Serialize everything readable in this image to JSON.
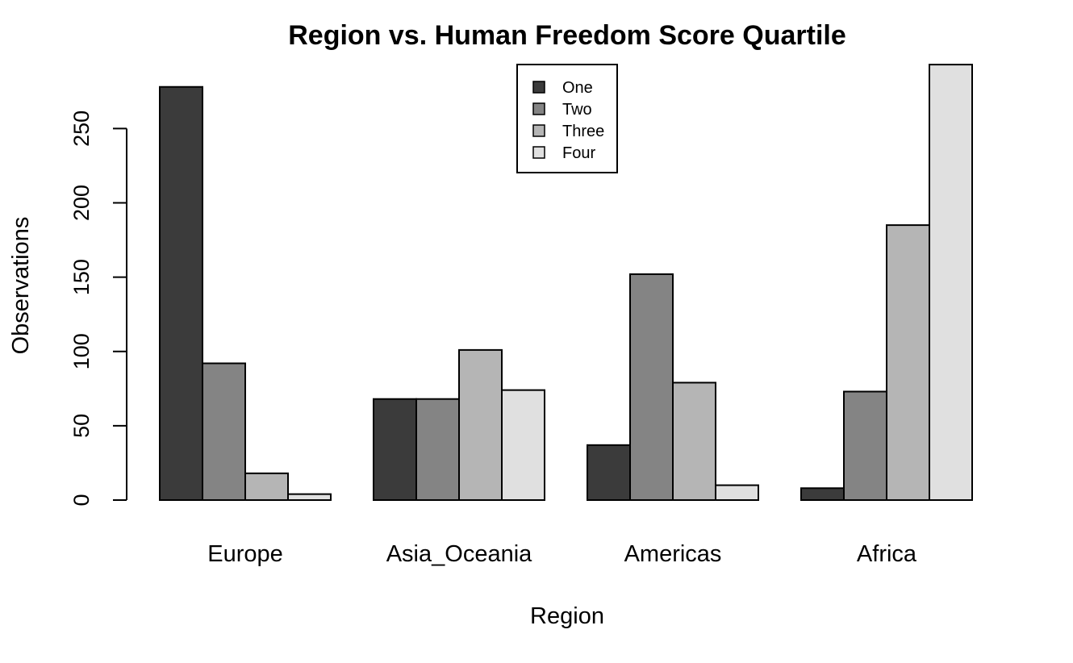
{
  "chart_data": {
    "type": "bar",
    "title": "Region vs. Human Freedom Score Quartile",
    "xlabel": "Region",
    "ylabel": "Observations",
    "categories": [
      "Europe",
      "Asia_Oceania",
      "Americas",
      "Africa"
    ],
    "series": [
      {
        "name": "One",
        "color": "#3b3b3b",
        "values": [
          278,
          68,
          37,
          8
        ]
      },
      {
        "name": "Two",
        "color": "#848484",
        "values": [
          92,
          68,
          152,
          73
        ]
      },
      {
        "name": "Three",
        "color": "#b5b5b5",
        "values": [
          18,
          101,
          79,
          185
        ]
      },
      {
        "name": "Four",
        "color": "#e0e0e0",
        "values": [
          4,
          74,
          10,
          293
        ]
      }
    ],
    "yticks": [
      0,
      50,
      100,
      150,
      200,
      250
    ],
    "ylim": [
      0,
      293
    ],
    "grouped": true,
    "grid": false,
    "legend_position": "top-center"
  }
}
